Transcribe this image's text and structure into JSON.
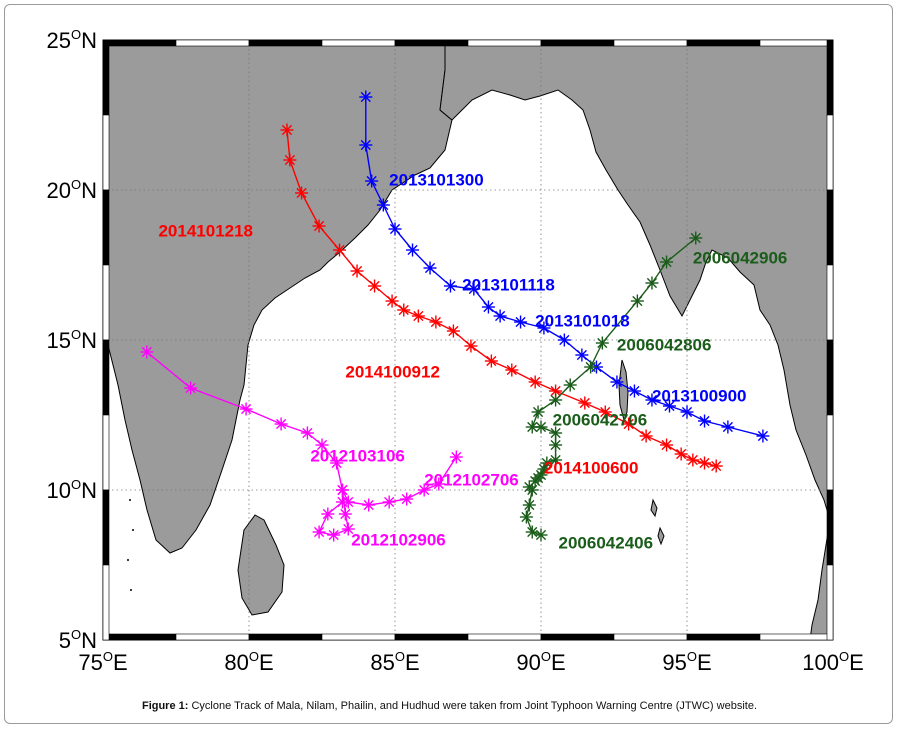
{
  "figure": {
    "caption_label": "Figure 1:",
    "caption_text": "Cyclone Track of Mala, Nilam, Phailin, and Hudhud were taken from Joint Typhoon Warning Centre (JTWC) website."
  },
  "colors": {
    "land": "#9b9b9b",
    "sea": "#ffffff",
    "hudhud": "#ff0000",
    "phailin": "#0000ff",
    "nilam": "#ff00ff",
    "mala": "#1a5c1a"
  },
  "chart_data": {
    "type": "map-track",
    "xlim": [
      75,
      100
    ],
    "ylim": [
      5,
      25
    ],
    "x_ticks": [
      75,
      80,
      85,
      90,
      95,
      100
    ],
    "y_ticks": [
      5,
      10,
      15,
      20,
      25
    ],
    "x_tick_labels": [
      "75",
      "80",
      "85",
      "90",
      "95",
      "100"
    ],
    "y_tick_labels": [
      "5",
      "10",
      "15",
      "20",
      "25"
    ],
    "x_suffix": "E",
    "y_suffix": "N",
    "grid": true,
    "series": [
      {
        "key": "hudhud",
        "points": [
          [
            96.0,
            10.8
          ],
          [
            95.6,
            10.9
          ],
          [
            95.2,
            11.0
          ],
          [
            94.8,
            11.2
          ],
          [
            94.3,
            11.5
          ],
          [
            93.6,
            11.8
          ],
          [
            93.0,
            12.2
          ],
          [
            92.2,
            12.6
          ],
          [
            91.5,
            12.9
          ],
          [
            90.5,
            13.3
          ],
          [
            89.8,
            13.6
          ],
          [
            89.0,
            14.0
          ],
          [
            88.3,
            14.3
          ],
          [
            87.6,
            14.8
          ],
          [
            87.0,
            15.3
          ],
          [
            86.4,
            15.6
          ],
          [
            85.8,
            15.8
          ],
          [
            85.3,
            16.0
          ],
          [
            84.9,
            16.3
          ],
          [
            84.3,
            16.8
          ],
          [
            83.7,
            17.3
          ],
          [
            83.1,
            18.0
          ],
          [
            82.4,
            18.8
          ],
          [
            81.8,
            19.9
          ],
          [
            81.4,
            21.0
          ],
          [
            81.3,
            22.0
          ]
        ],
        "labels": [
          {
            "text": "2014100600",
            "lon": 90.1,
            "lat": 10.7
          },
          {
            "text": "2014100912",
            "lon": 83.3,
            "lat": 13.9
          },
          {
            "text": "2014101218",
            "lon": 76.9,
            "lat": 18.6
          }
        ]
      },
      {
        "key": "phailin",
        "points": [
          [
            97.6,
            11.8
          ],
          [
            96.4,
            12.1
          ],
          [
            95.6,
            12.3
          ],
          [
            95.0,
            12.6
          ],
          [
            94.4,
            12.8
          ],
          [
            93.8,
            13.0
          ],
          [
            93.2,
            13.3
          ],
          [
            92.6,
            13.6
          ],
          [
            91.9,
            14.1
          ],
          [
            91.4,
            14.5
          ],
          [
            90.8,
            15.0
          ],
          [
            90.1,
            15.4
          ],
          [
            89.3,
            15.6
          ],
          [
            88.6,
            15.8
          ],
          [
            88.2,
            16.1
          ],
          [
            87.7,
            16.7
          ],
          [
            86.9,
            16.8
          ],
          [
            86.2,
            17.4
          ],
          [
            85.6,
            18.0
          ],
          [
            85.0,
            18.7
          ],
          [
            84.6,
            19.5
          ],
          [
            84.2,
            20.3
          ],
          [
            84.0,
            21.5
          ],
          [
            84.0,
            23.1
          ]
        ],
        "labels": [
          {
            "text": "2013101300",
            "lon": 84.8,
            "lat": 20.3
          },
          {
            "text": "2013101118",
            "lon": 87.3,
            "lat": 16.8
          },
          {
            "text": "2013101018",
            "lon": 89.8,
            "lat": 15.6
          },
          {
            "text": "2013100900",
            "lon": 93.8,
            "lat": 13.1
          }
        ]
      },
      {
        "key": "nilam",
        "points": [
          [
            87.1,
            11.1
          ],
          [
            86.5,
            10.2
          ],
          [
            86.0,
            10.0
          ],
          [
            85.4,
            9.7
          ],
          [
            84.8,
            9.6
          ],
          [
            84.1,
            9.5
          ],
          [
            83.4,
            9.6
          ],
          [
            83.2,
            10.0
          ],
          [
            83.0,
            10.9
          ],
          [
            82.5,
            11.5
          ],
          [
            82.0,
            11.9
          ],
          [
            81.1,
            12.2
          ],
          [
            79.9,
            12.7
          ],
          [
            78.0,
            13.4
          ],
          [
            76.5,
            14.6
          ]
        ],
        "extra": [
          [
            83.2,
            10.0
          ],
          [
            83.3,
            9.2
          ],
          [
            83.4,
            8.7
          ],
          [
            82.9,
            8.5
          ],
          [
            82.4,
            8.6
          ],
          [
            82.7,
            9.2
          ],
          [
            83.2,
            9.6
          ]
        ],
        "labels": [
          {
            "text": "2012103106",
            "lon": 82.1,
            "lat": 11.1
          },
          {
            "text": "2012102706",
            "lon": 86.0,
            "lat": 10.3
          },
          {
            "text": "2012102906",
            "lon": 83.5,
            "lat": 8.3
          }
        ]
      },
      {
        "key": "mala",
        "points": [
          [
            90.0,
            8.5
          ],
          [
            89.7,
            8.6
          ],
          [
            89.5,
            9.1
          ],
          [
            89.6,
            9.5
          ],
          [
            89.7,
            10.0
          ],
          [
            89.6,
            10.1
          ],
          [
            89.8,
            10.3
          ],
          [
            89.9,
            10.4
          ],
          [
            90.0,
            10.5
          ],
          [
            90.1,
            10.7
          ],
          [
            90.2,
            10.9
          ],
          [
            90.5,
            11.0
          ],
          [
            90.5,
            11.5
          ],
          [
            90.5,
            11.9
          ],
          [
            90.0,
            12.1
          ],
          [
            89.7,
            12.1
          ],
          [
            89.9,
            12.6
          ],
          [
            90.5,
            13.0
          ],
          [
            91.0,
            13.5
          ],
          [
            91.7,
            14.1
          ],
          [
            92.1,
            14.9
          ],
          [
            93.3,
            16.3
          ],
          [
            93.8,
            16.9
          ],
          [
            94.3,
            17.6
          ],
          [
            95.3,
            18.4
          ]
        ],
        "labels": [
          {
            "text": "2006042406",
            "lon": 90.6,
            "lat": 8.2
          },
          {
            "text": "2006042706",
            "lon": 90.4,
            "lat": 12.3
          },
          {
            "text": "2006042806",
            "lon": 92.6,
            "lat": 14.8
          },
          {
            "text": "2006042906",
            "lon": 95.2,
            "lat": 17.7
          }
        ]
      }
    ]
  }
}
